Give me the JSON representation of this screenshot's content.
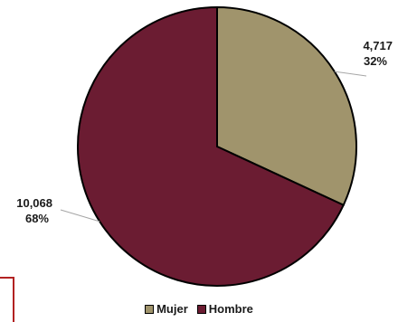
{
  "chart_data": {
    "type": "pie",
    "categories": [
      "Mujer",
      "Hombre"
    ],
    "values": [
      4717,
      10068
    ],
    "value_labels": [
      "4,717",
      "10,068"
    ],
    "percent_labels": [
      "32%",
      "68%"
    ],
    "colors": [
      "#a0946c",
      "#6b1c32"
    ],
    "legend_position": "bottom"
  },
  "legend": {
    "items": [
      {
        "label": "Mujer",
        "color": "#a0946c"
      },
      {
        "label": "Hombre",
        "color": "#6b1c32"
      }
    ]
  }
}
